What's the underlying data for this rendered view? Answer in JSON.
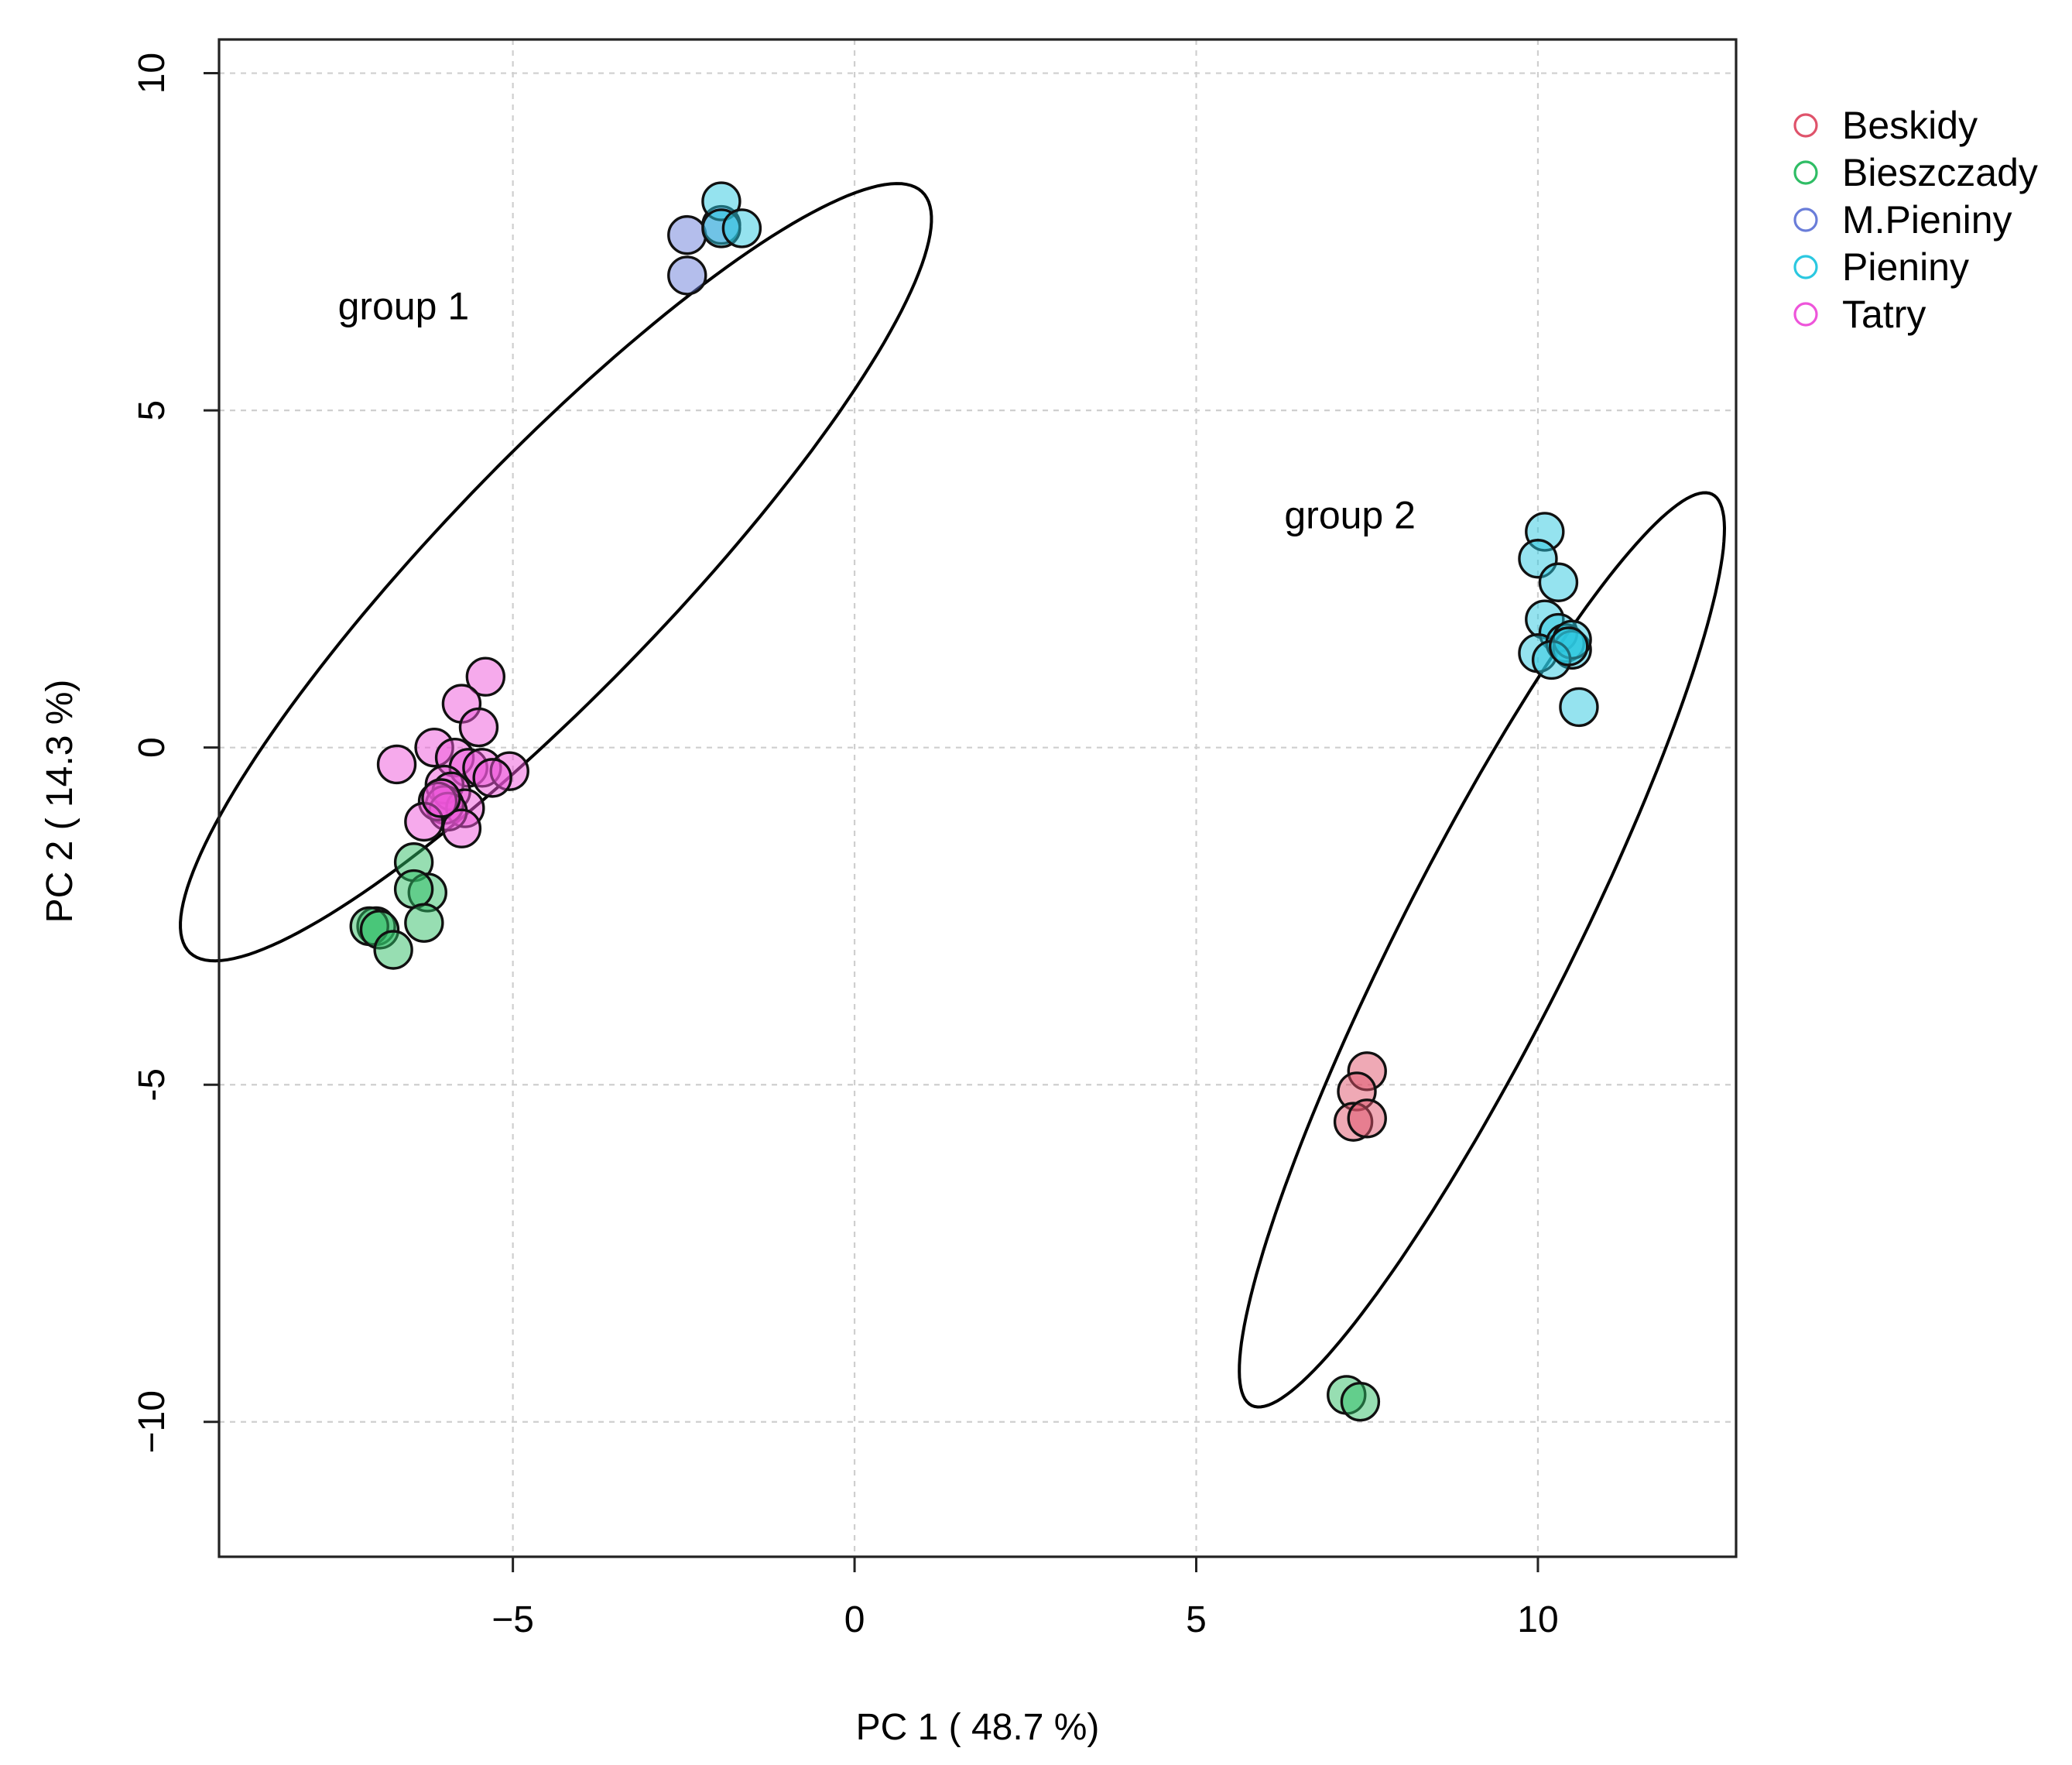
{
  "chart_data": {
    "type": "scatter",
    "xlabel": "PC 1 ( 48.7 %)",
    "ylabel": "PC 2 ( 14.3 %)",
    "xlim": [
      -9.3,
      12.9
    ],
    "ylim": [
      -12.0,
      10.5
    ],
    "x_ticks": [
      {
        "value": -5,
        "label": "−5"
      },
      {
        "value": 0,
        "label": "0"
      },
      {
        "value": 5,
        "label": "5"
      },
      {
        "value": 10,
        "label": "10"
      }
    ],
    "y_ticks": [
      {
        "value": -10,
        "label": "−10"
      },
      {
        "value": -5,
        "label": "-5"
      },
      {
        "value": 0,
        "label": "0"
      },
      {
        "value": 5,
        "label": "5"
      },
      {
        "value": 10,
        "label": "10"
      }
    ],
    "grid": true,
    "legend_position": "outside-top-right",
    "series": [
      {
        "name": "Beskidy",
        "color": "#DF536B",
        "points": [
          [
            7.5,
            -4.8
          ],
          [
            7.35,
            -5.1
          ],
          [
            7.3,
            -5.55
          ],
          [
            7.5,
            -5.5
          ]
        ]
      },
      {
        "name": "Bieszczady",
        "color": "#2FBD65",
        "points": [
          [
            -6.45,
            -1.7
          ],
          [
            -6.25,
            -2.15
          ],
          [
            -6.45,
            -2.1
          ],
          [
            -7.0,
            -2.65
          ],
          [
            -7.1,
            -2.65
          ],
          [
            -6.95,
            -2.7
          ],
          [
            -6.3,
            -2.6
          ],
          [
            -6.75,
            -3.0
          ],
          [
            7.2,
            -9.6
          ],
          [
            7.4,
            -9.7
          ]
        ]
      },
      {
        "name": "M.Pieniny",
        "color": "#6A7DD9",
        "points": [
          [
            -2.45,
            7.6
          ],
          [
            -2.45,
            7.0
          ],
          [
            -1.95,
            7.75
          ]
        ]
      },
      {
        "name": "Pieniny",
        "color": "#2BC8E0",
        "points": [
          [
            -1.95,
            8.1
          ],
          [
            -1.95,
            7.7
          ],
          [
            -1.65,
            7.7
          ],
          [
            10.1,
            3.2
          ],
          [
            10.0,
            2.8
          ],
          [
            10.3,
            2.45
          ],
          [
            10.1,
            1.9
          ],
          [
            10.3,
            1.7
          ],
          [
            10.0,
            1.4
          ],
          [
            10.4,
            1.55
          ],
          [
            10.5,
            1.45
          ],
          [
            10.5,
            1.6
          ],
          [
            10.2,
            1.3
          ],
          [
            10.45,
            1.5
          ],
          [
            10.6,
            0.6
          ]
        ]
      },
      {
        "name": "Tatry",
        "color": "#EE55DA",
        "points": [
          [
            -5.4,
            1.05
          ],
          [
            -5.75,
            0.65
          ],
          [
            -5.5,
            0.3
          ],
          [
            -6.7,
            -0.25
          ],
          [
            -6.15,
            0.0
          ],
          [
            -5.85,
            -0.15
          ],
          [
            -5.65,
            -0.3
          ],
          [
            -5.45,
            -0.3
          ],
          [
            -5.05,
            -0.35
          ],
          [
            -5.3,
            -0.45
          ],
          [
            -6.0,
            -0.55
          ],
          [
            -5.9,
            -0.65
          ],
          [
            -5.7,
            -0.9
          ],
          [
            -6.0,
            -0.85
          ],
          [
            -5.95,
            -0.95
          ],
          [
            -6.1,
            -0.8
          ],
          [
            -6.3,
            -1.1
          ],
          [
            -5.75,
            -1.2
          ],
          [
            -6.05,
            -0.75
          ]
        ]
      }
    ],
    "annotations": [
      {
        "text": "group 1",
        "x": -6.6,
        "y": 6.5
      },
      {
        "text": "group 2",
        "x": 7.25,
        "y": 3.4
      }
    ],
    "ellipses": [
      {
        "name": "group 1",
        "cx": -4.37,
        "cy": 2.6,
        "rx": 7.78,
        "ry": 1.7,
        "angle_deg": 46.5
      },
      {
        "name": "group 2",
        "cx": 9.18,
        "cy": -3.0,
        "rx": 7.55,
        "ry": 1.25,
        "angle_deg": 63.5
      }
    ]
  }
}
